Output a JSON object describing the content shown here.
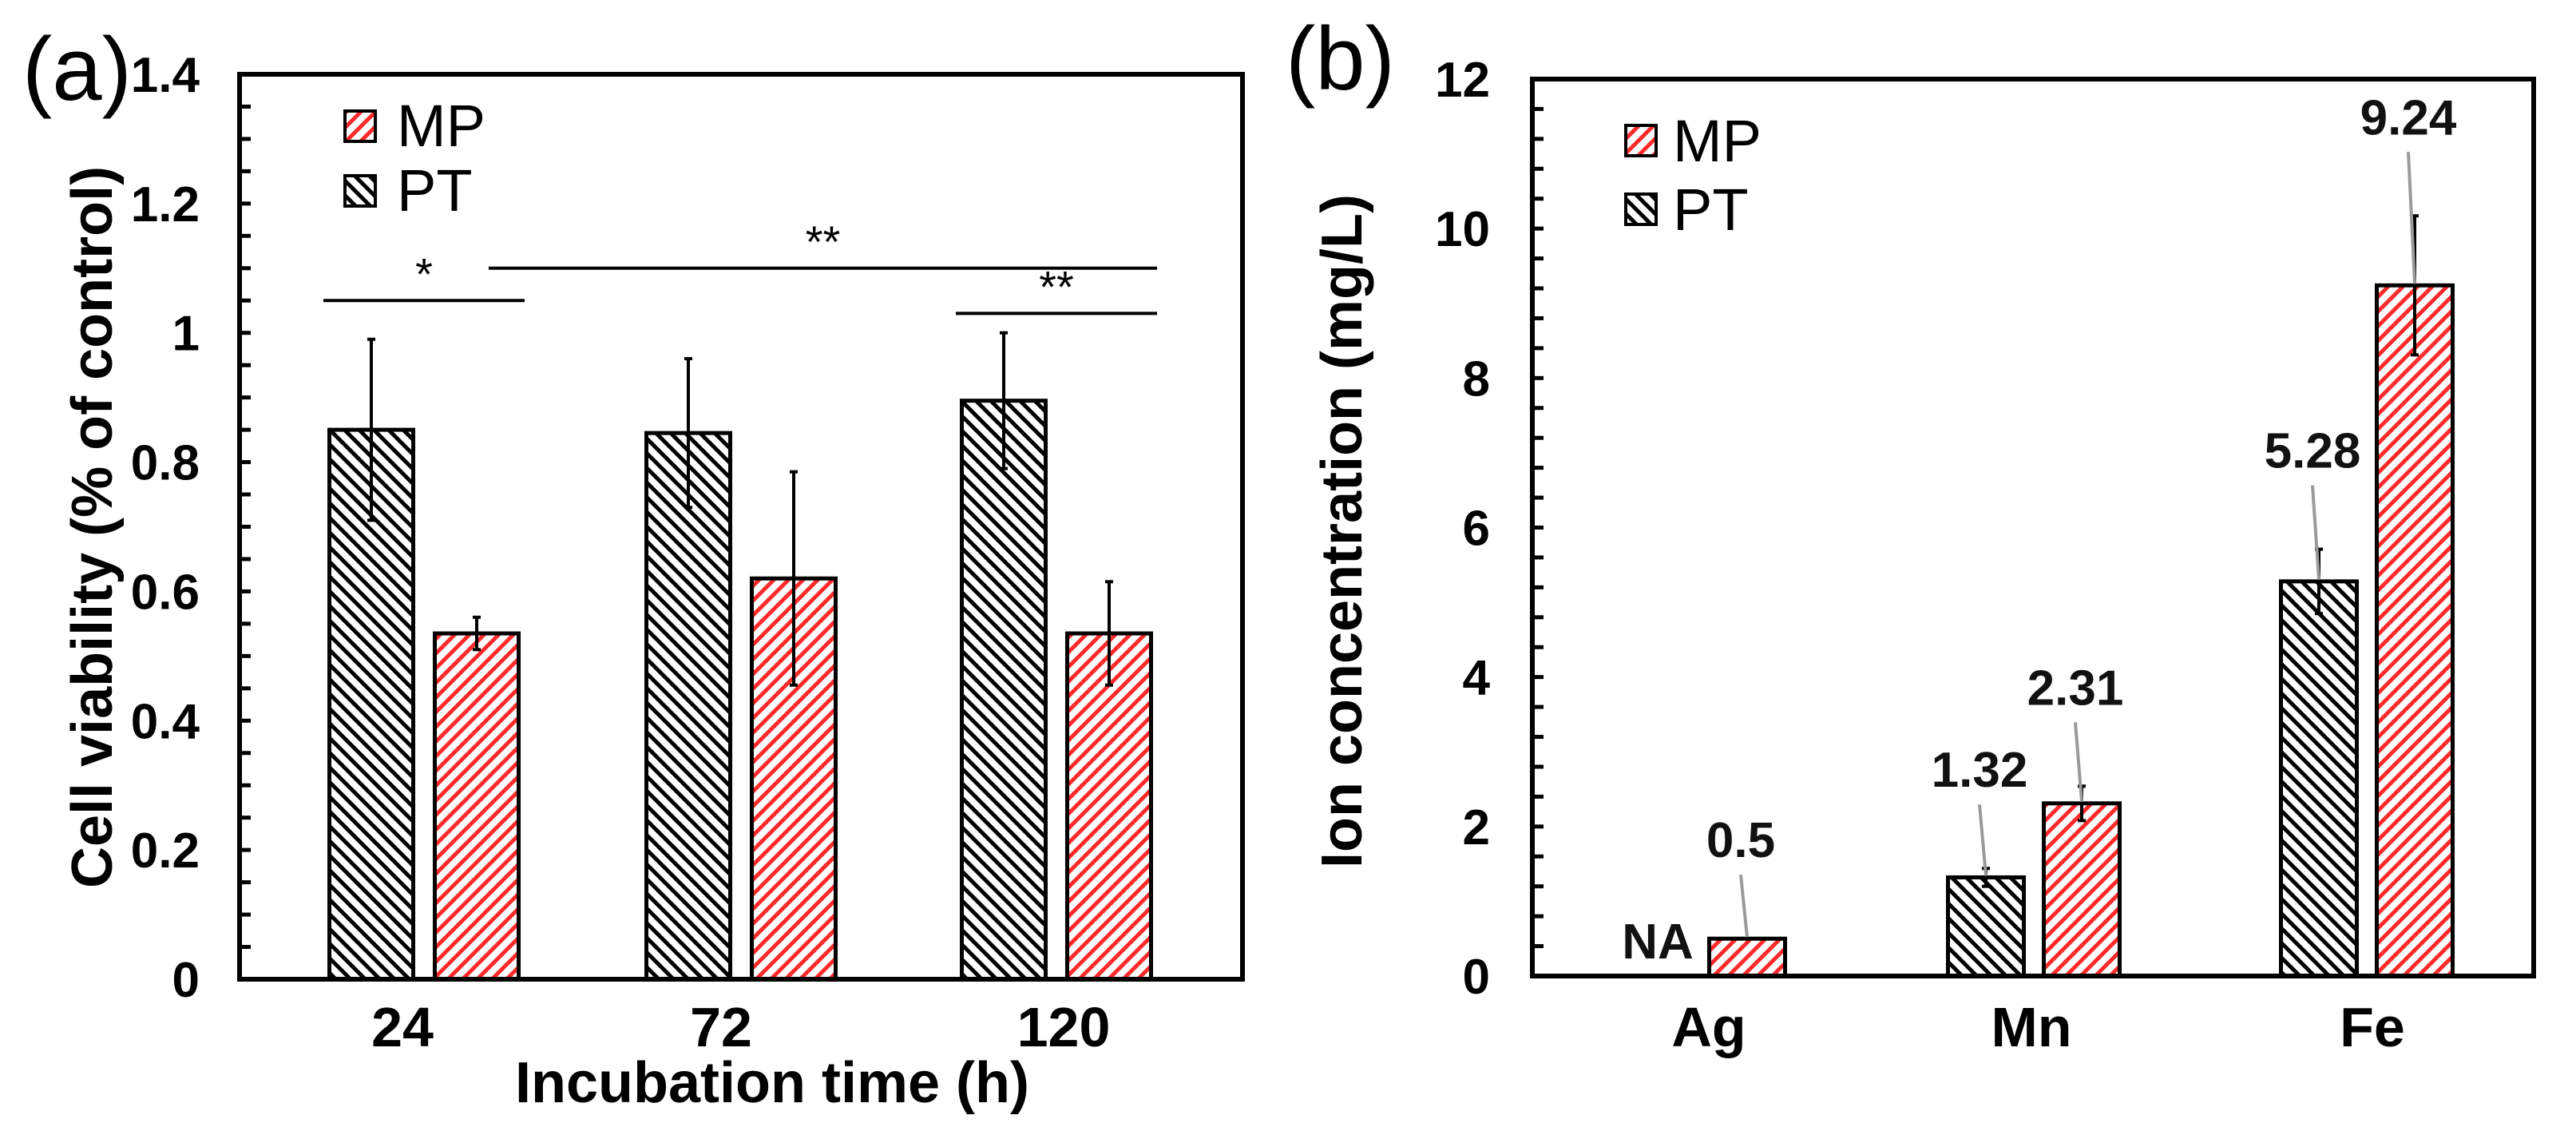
{
  "colors": {
    "MP": "#ff2a2a",
    "PT": "#000000",
    "leader": "#9a9a9a"
  },
  "chart_data": [
    {
      "panel_label": "(a)",
      "type": "bar",
      "title": "",
      "xlabel": "Incubation time (h)",
      "ylabel": "Cell viability (% of control)",
      "ylim": [
        0,
        1.4
      ],
      "yticks": [
        "0",
        "0.2",
        "0.4",
        "0.6",
        "0.8",
        "1",
        "1.2",
        "1.4"
      ],
      "categories": [
        "24",
        "72",
        "120"
      ],
      "legend": {
        "placement": "top-left",
        "entries": [
          "MP",
          "PT"
        ]
      },
      "series": [
        {
          "name": "PT",
          "values": [
            0.85,
            0.845,
            0.895
          ],
          "errors": [
            0.14,
            0.115,
            0.105
          ]
        },
        {
          "name": "MP",
          "values": [
            0.535,
            0.62,
            0.535
          ],
          "errors": [
            0.025,
            0.165,
            0.08
          ]
        }
      ],
      "annotations": [
        {
          "text": "*",
          "from": "24 PT",
          "to": "24 MP",
          "y": 1.05
        },
        {
          "text": "**",
          "from": "24 MP",
          "to": "120 MP",
          "y": 1.1
        },
        {
          "text": "**",
          "from": "120 PT",
          "to": "120 MP",
          "y": 1.03
        }
      ]
    },
    {
      "panel_label": "(b)",
      "type": "bar",
      "title": "",
      "xlabel": "",
      "ylabel": "Ion concentration (mg/L)",
      "ylim": [
        0,
        12
      ],
      "yticks": [
        "0",
        "2",
        "4",
        "6",
        "8",
        "10",
        "12"
      ],
      "categories": [
        "Ag",
        "Mn",
        "Fe"
      ],
      "legend": {
        "placement": "top-left",
        "entries": [
          "MP",
          "PT"
        ]
      },
      "series": [
        {
          "name": "PT",
          "values": [
            null,
            1.32,
            5.28
          ],
          "errors": [
            null,
            0.12,
            0.43
          ],
          "labels": [
            "NA",
            "1.32",
            "5.28"
          ]
        },
        {
          "name": "MP",
          "values": [
            0.5,
            2.31,
            9.24
          ],
          "errors": [
            0,
            0.23,
            0.93
          ],
          "labels": [
            "0.5",
            "2.31",
            "9.24"
          ]
        }
      ]
    }
  ]
}
